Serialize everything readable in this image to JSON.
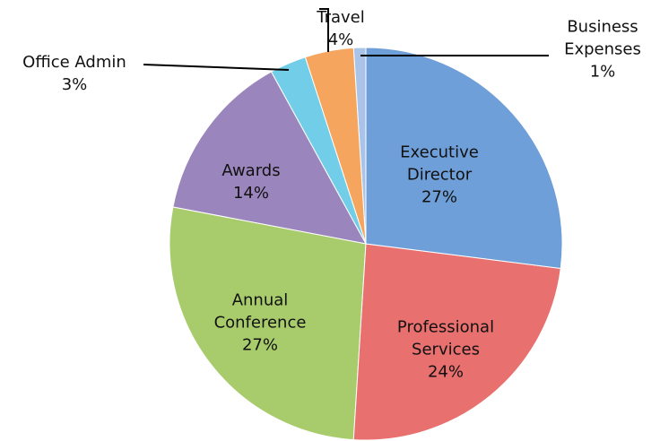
{
  "chart_data": {
    "type": "pie",
    "categories": [
      "Executive Director",
      "Professional Services",
      "Annual Conference",
      "Awards",
      "Office Admin",
      "Travel",
      "Business Expenses"
    ],
    "values": [
      27,
      24,
      27,
      14,
      3,
      4,
      1
    ],
    "value_labels": [
      "27%",
      "24%",
      "27%",
      "14%",
      "3%",
      "4%",
      "1%"
    ],
    "colors": [
      "#6f9fd8",
      "#e8706e",
      "#a8cc6c",
      "#9a85bd",
      "#72cde8",
      "#f5a55e",
      "#a9c4e8"
    ]
  }
}
